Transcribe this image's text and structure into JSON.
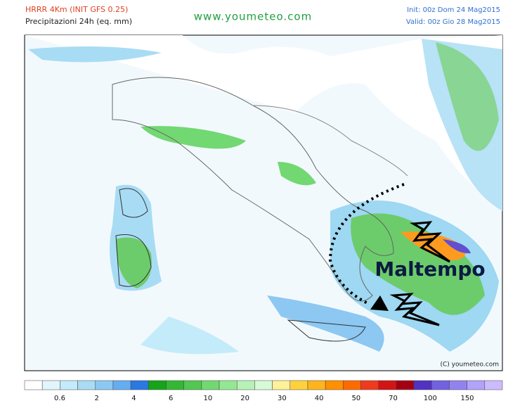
{
  "header": {
    "model": "HRRR 4Km (INIT GFS 0.25)",
    "field": "Precipitazioni 24h (eq. mm)",
    "site": "www.youmeteo.com",
    "init": "Init: 00z Dom 24 Mag2015",
    "valid": "Valid: 00z Gio 28 Mag2015"
  },
  "map": {
    "annotation": "Maltempo",
    "copyright": "(C) youmeteo.com"
  },
  "colorbar": {
    "colors": [
      "#ffffff",
      "#e2f5fc",
      "#c4ebf9",
      "#a8dcf4",
      "#8cc8f2",
      "#64aef0",
      "#2a78e2",
      "#16a41a",
      "#34b834",
      "#52c852",
      "#72d872",
      "#94e894",
      "#b6f2b6",
      "#d6fad6",
      "#fff09a",
      "#ffd23c",
      "#ffb41e",
      "#ff9000",
      "#ff6a00",
      "#f03a1e",
      "#d41414",
      "#a40014",
      "#5232c2",
      "#7262e0",
      "#9282f0",
      "#b2a2f8",
      "#ccbcff"
    ],
    "ticks": [
      0.6,
      2,
      4,
      6,
      10,
      20,
      30,
      40,
      50,
      70,
      100,
      150
    ]
  }
}
